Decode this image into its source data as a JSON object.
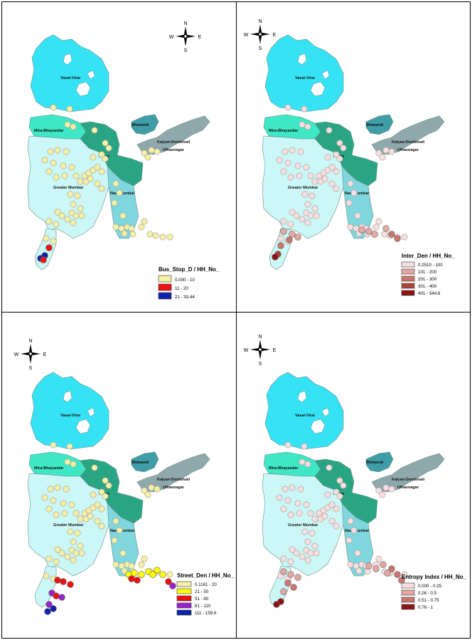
{
  "compass": {
    "n": "N",
    "s": "S",
    "e": "E",
    "w": "W"
  },
  "regions": {
    "vasai": "Vasai-Virar",
    "mira": "Mira-Bhayandar",
    "thane": "Thane",
    "bhiwandi": "Bhiwandi",
    "kalyan": "Kalyan-Dombivali",
    "ulhasnagar": "Ulhasnagar",
    "greater": "Greater Mumbai",
    "navi": "Navi Mumbai"
  },
  "region_colors": {
    "vasai": "#35e3f5",
    "mira": "#3ee8c6",
    "thane": "#2aa583",
    "bhiwandi": "#3e9da7",
    "kalyan": "#8fa8ab",
    "greater": "#ccf7f7",
    "navi": "#7fd7dd"
  },
  "panels": [
    {
      "legend_title": "Bus_Stop_D / HH_No_",
      "classes": [
        {
          "label": "0.000 - 10",
          "color": "#f5f0a6"
        },
        {
          "label": "11 - 20",
          "color": "#ee1111"
        },
        {
          "label": "21 - 33.44",
          "color": "#1122aa"
        }
      ]
    },
    {
      "legend_title": "Inter_Den / HH_No_",
      "classes": [
        {
          "label": "0.2510 - 100",
          "color": "#f8dede"
        },
        {
          "label": "101 - 200",
          "color": "#e3a8a2"
        },
        {
          "label": "201 - 300",
          "color": "#c8766e"
        },
        {
          "label": "301 - 400",
          "color": "#a8443c"
        },
        {
          "label": "401 - 544.6",
          "color": "#8c1414"
        }
      ]
    },
    {
      "legend_title": "Street_Den / HH_No_",
      "classes": [
        {
          "label": "0.1161 - 20",
          "color": "#f5f0a6"
        },
        {
          "label": "21 - 50",
          "color": "#ffff00"
        },
        {
          "label": "51 - 80",
          "color": "#ee1111"
        },
        {
          "label": "81 - 110",
          "color": "#9a22cc"
        },
        {
          "label": "111 - 159.6",
          "color": "#1122aa"
        }
      ]
    },
    {
      "legend_title": "Entropy Index / HH_No_",
      "classes": [
        {
          "label": "0.000 - 0.25",
          "color": "#f8dede"
        },
        {
          "label": "0.26 - 0.5",
          "color": "#e3a8a2"
        },
        {
          "label": "0.51 - 0.75",
          "color": "#c8766e"
        },
        {
          "label": "0.76 - 1",
          "color": "#8c1414"
        }
      ]
    }
  ]
}
